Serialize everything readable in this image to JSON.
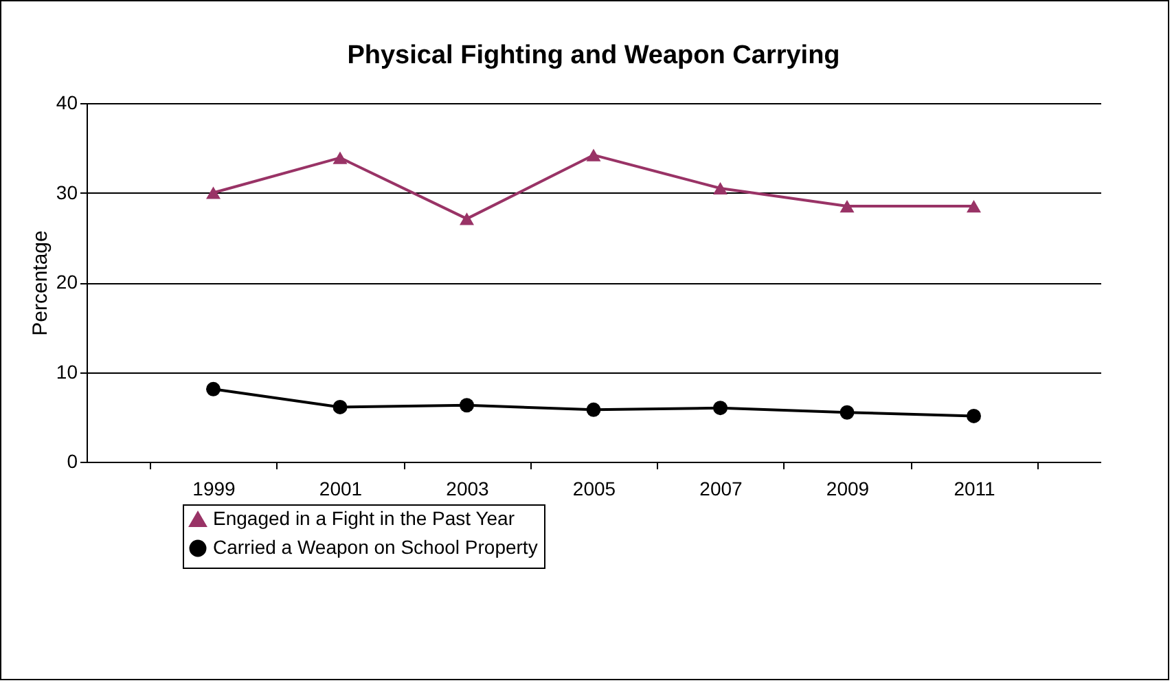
{
  "chart_data": {
    "type": "line",
    "title": "Physical Fighting and Weapon Carrying",
    "ylabel": "Percentage",
    "categories": [
      "1999",
      "2001",
      "2003",
      "2005",
      "2007",
      "2009",
      "2011"
    ],
    "series": [
      {
        "name": "Engaged in a Fight in the Past Year",
        "color": "#993366",
        "marker": "triangle",
        "values": [
          30.0,
          33.9,
          27.1,
          34.2,
          30.5,
          28.5,
          28.5
        ]
      },
      {
        "name": "Carried a Weapon on School Property",
        "color": "#000000",
        "marker": "circle",
        "values": [
          8.1,
          6.1,
          6.3,
          5.8,
          6.0,
          5.5,
          5.1
        ]
      }
    ],
    "ylim": [
      0,
      40
    ],
    "yticks": [
      0,
      10,
      20,
      30,
      40
    ],
    "grid": "y",
    "legend": "bottom"
  }
}
